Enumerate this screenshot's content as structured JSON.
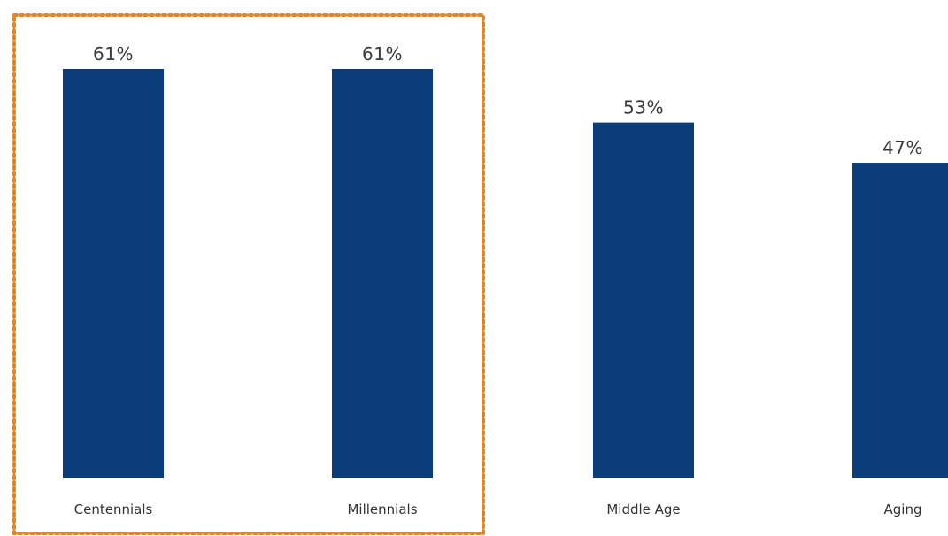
{
  "colors": {
    "bar": "#0a3d7a",
    "highlight_border": "#e0862a",
    "label_text": "#3a3a3a"
  },
  "chart_data": {
    "type": "bar",
    "title": "",
    "xlabel": "",
    "ylabel": "",
    "unit": "%",
    "ylim": [
      0,
      61
    ],
    "grid": false,
    "categories": [
      "Centennials",
      "Millennials",
      "Middle Age",
      "Aging"
    ],
    "values": [
      61,
      61,
      53,
      47
    ],
    "value_labels": [
      "61%",
      "61%",
      "53%",
      "47%"
    ],
    "highlighted_categories": [
      "Centennials",
      "Millennials"
    ]
  }
}
